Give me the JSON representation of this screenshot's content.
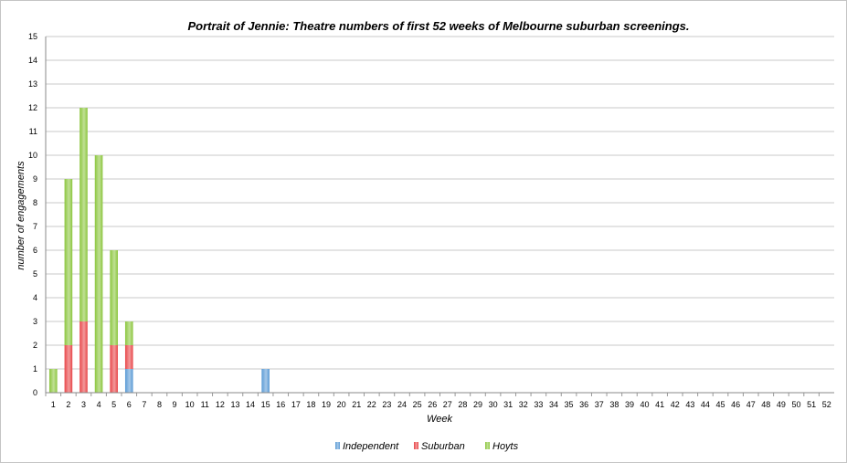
{
  "chart_data": {
    "type": "bar",
    "stacked": true,
    "title": "Portrait of Jennie: Theatre numbers of first 52 weeks of Melbourne suburban screenings.",
    "xlabel": "Week",
    "ylabel": "number of engagements",
    "ylim": [
      0,
      15
    ],
    "yticks": [
      "0",
      "1",
      "2",
      "3",
      "4",
      "5",
      "6",
      "7",
      "8",
      "9",
      "10",
      "11",
      "12",
      "13",
      "14",
      "15"
    ],
    "categories": [
      "1",
      "2",
      "3",
      "4",
      "5",
      "6",
      "7",
      "8",
      "9",
      "10",
      "11",
      "12",
      "13",
      "14",
      "15",
      "16",
      "17",
      "18",
      "19",
      "20",
      "21",
      "22",
      "23",
      "24",
      "25",
      "26",
      "27",
      "28",
      "29",
      "30",
      "31",
      "32",
      "33",
      "34",
      "35",
      "36",
      "37",
      "38",
      "39",
      "40",
      "41",
      "42",
      "43",
      "44",
      "45",
      "46",
      "47",
      "48",
      "49",
      "50",
      "51",
      "52"
    ],
    "series": [
      {
        "name": "Independent",
        "color": "#5b9bd5",
        "values": [
          0,
          0,
          0,
          0,
          0,
          1,
          0,
          0,
          0,
          0,
          0,
          0,
          0,
          0,
          1,
          0,
          0,
          0,
          0,
          0,
          0,
          0,
          0,
          0,
          0,
          0,
          0,
          0,
          0,
          0,
          0,
          0,
          0,
          0,
          0,
          0,
          0,
          0,
          0,
          0,
          0,
          0,
          0,
          0,
          0,
          0,
          0,
          0,
          0,
          0,
          0,
          0
        ]
      },
      {
        "name": "Suburban",
        "color": "#e8474a",
        "values": [
          0,
          2,
          3,
          0,
          2,
          1,
          0,
          0,
          0,
          0,
          0,
          0,
          0,
          0,
          0,
          0,
          0,
          0,
          0,
          0,
          0,
          0,
          0,
          0,
          0,
          0,
          0,
          0,
          0,
          0,
          0,
          0,
          0,
          0,
          0,
          0,
          0,
          0,
          0,
          0,
          0,
          0,
          0,
          0,
          0,
          0,
          0,
          0,
          0,
          0,
          0,
          0
        ]
      },
      {
        "name": "Hoyts",
        "color": "#8cc63f",
        "values": [
          1,
          7,
          9,
          10,
          4,
          1,
          0,
          0,
          0,
          0,
          0,
          0,
          0,
          0,
          0,
          0,
          0,
          0,
          0,
          0,
          0,
          0,
          0,
          0,
          0,
          0,
          0,
          0,
          0,
          0,
          0,
          0,
          0,
          0,
          0,
          0,
          0,
          0,
          0,
          0,
          0,
          0,
          0,
          0,
          0,
          0,
          0,
          0,
          0,
          0,
          0,
          0
        ]
      }
    ],
    "grid": true,
    "legend_position": "bottom-center"
  }
}
